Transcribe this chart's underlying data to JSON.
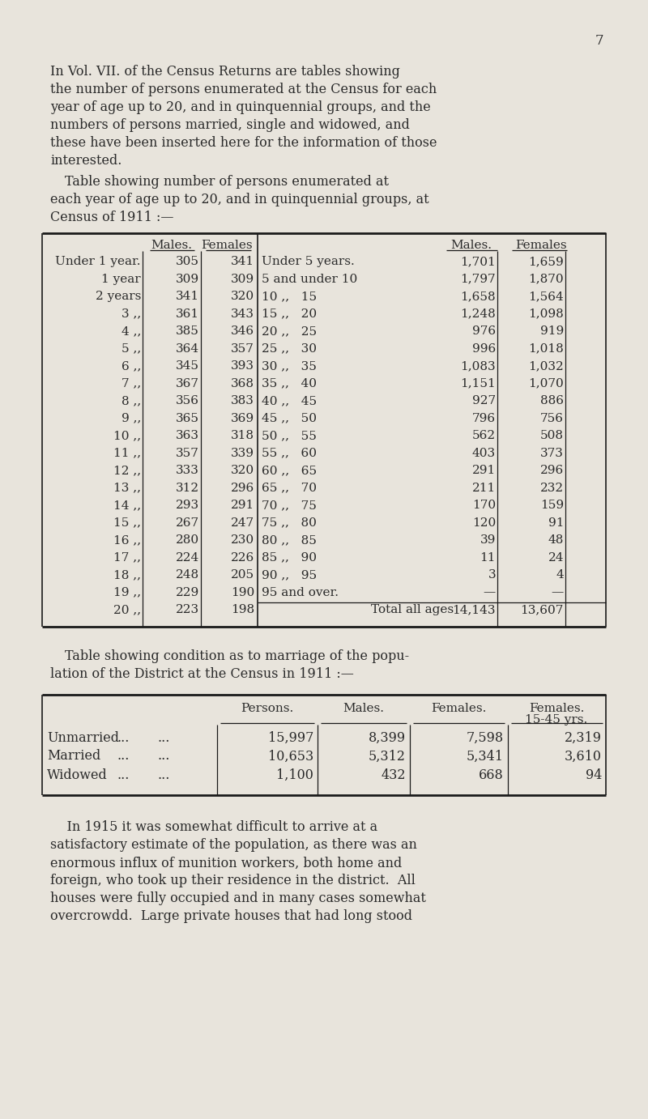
{
  "page_number": "7",
  "bg_color": "#e8e4dc",
  "text_color": "#2a2a2a",
  "intro_lines": [
    "In Vol. VII. of the Census Returns are tables showing",
    "the number of persons enumerated at the Census for each",
    "year of age up to 20, and in quinquennial groups, and the",
    "numbers of persons married, single and widowed, and",
    "these have been inserted here for the information of those",
    "interested."
  ],
  "heading1_lines": [
    "Table showing number of persons enumerated at",
    "each year of age up to 20, and in quinquennial groups, at",
    "Census of 1911 :—"
  ],
  "table1_left_rows": [
    [
      "Under 1 year.",
      "305",
      "341"
    ],
    [
      "1 year",
      "309",
      "309"
    ],
    [
      "2 years",
      "341",
      "320"
    ],
    [
      "3 ,,",
      "361",
      "343"
    ],
    [
      "4 ,,",
      "385",
      "346"
    ],
    [
      "5 ,,",
      "364",
      "357"
    ],
    [
      "6 ,,",
      "345",
      "393"
    ],
    [
      "7 ,,",
      "367",
      "368"
    ],
    [
      "8 ,,",
      "356",
      "383"
    ],
    [
      "9 ,,",
      "365",
      "369"
    ],
    [
      "10 ,,",
      "363",
      "318"
    ],
    [
      "11 ,,",
      "357",
      "339"
    ],
    [
      "12 ,,",
      "333",
      "320"
    ],
    [
      "13 ,,",
      "312",
      "296"
    ],
    [
      "14 ,,",
      "293",
      "291"
    ],
    [
      "15 ,,",
      "267",
      "247"
    ],
    [
      "16 ,,",
      "280",
      "230"
    ],
    [
      "17 ,,",
      "224",
      "226"
    ],
    [
      "18 ,,",
      "248",
      "205"
    ],
    [
      "19 ,,",
      "229",
      "190"
    ],
    [
      "20 ,,",
      "223",
      "198"
    ]
  ],
  "table1_right_rows": [
    [
      "Under 5 years.",
      "1,701",
      "1,659"
    ],
    [
      "5 and under 10",
      "1,797",
      "1,870"
    ],
    [
      "10 ,,   15",
      "1,658",
      "1,564"
    ],
    [
      "15 ,,   20",
      "1,248",
      "1,098"
    ],
    [
      "20 ,,   25",
      "976",
      "919"
    ],
    [
      "25 ,,   30",
      "996",
      "1,018"
    ],
    [
      "30 ,,   35",
      "1,083",
      "1,032"
    ],
    [
      "35 ,,   40",
      "1,151",
      "1,070"
    ],
    [
      "40 ,,   45",
      "927",
      "886"
    ],
    [
      "45 ,,   50",
      "796",
      "756"
    ],
    [
      "50 ,,   55",
      "562",
      "508"
    ],
    [
      "55 ,,   60",
      "403",
      "373"
    ],
    [
      "60 ,,   65",
      "291",
      "296"
    ],
    [
      "65 ,,   70",
      "211",
      "232"
    ],
    [
      "70 ,,   75",
      "170",
      "159"
    ],
    [
      "75 ,,   80",
      "120",
      "91"
    ],
    [
      "80 ,,   85",
      "39",
      "48"
    ],
    [
      "85 ,,   90",
      "11",
      "24"
    ],
    [
      "90 ,,   95",
      "3",
      "4"
    ],
    [
      "95 and over.",
      "—",
      "—"
    ],
    [
      "Total all ages",
      "14,143",
      "13,607"
    ]
  ],
  "heading2_lines": [
    "Table showing condition as to marriage of the popu-",
    "lation of the District at the Census in 1911 :—"
  ],
  "table2_rows": [
    [
      "Unmarried",
      "...",
      "...",
      "15,997",
      "8,399",
      "7,598",
      "2,319"
    ],
    [
      "Married",
      "...",
      "...",
      "10,653",
      "5,312",
      "5,341",
      "3,610"
    ],
    [
      "Widowed",
      "...",
      "...",
      "1,100",
      "432",
      "668",
      "94"
    ]
  ],
  "footer_lines": [
    "    In 1915 it was somewhat difficult to arrive at a",
    "satisfactory estimate of the population, as there was an",
    "enormous influx of munition workers, both home and",
    "foreign, who took up their residence in the district.  All",
    "houses were fully occupied and in many cases somewhat",
    "overcrowdd.  Large private houses that had long stood"
  ]
}
